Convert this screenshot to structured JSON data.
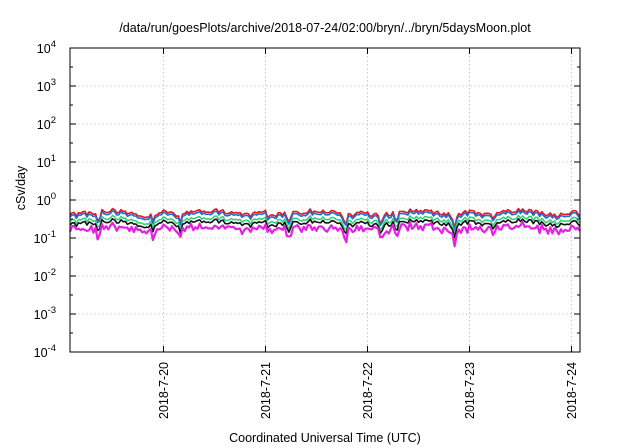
{
  "chart_data": {
    "type": "line",
    "title": "/data/run/goesPlots/archive/2018-07-24/02:00/bryn/../bryn/5daysMoon.plot",
    "xlabel": "Coordinated Universal Time (UTC)",
    "ylabel": "cSv/day",
    "yscale": "log",
    "ylim": [
      0.0001,
      10000
    ],
    "xlim_days": [
      "2018-07-19T02:00",
      "2018-07-24T02:00"
    ],
    "grid": true,
    "legend": "none",
    "x_ticks": [
      "2018-7-20",
      "2018-7-21",
      "2018-7-22",
      "2018-7-23",
      "2018-7-24"
    ],
    "y_ticks": [
      {
        "base": "10",
        "exp": "-4"
      },
      {
        "base": "10",
        "exp": "-3"
      },
      {
        "base": "10",
        "exp": "-2"
      },
      {
        "base": "10",
        "exp": "-1"
      },
      {
        "base": "10",
        "exp": "0"
      },
      {
        "base": "10",
        "exp": "1"
      },
      {
        "base": "10",
        "exp": "2"
      },
      {
        "base": "10",
        "exp": "3"
      },
      {
        "base": "10",
        "exp": "4"
      }
    ],
    "series": [
      {
        "color": "#e8141e",
        "base": 0.5
      },
      {
        "color": "#1f6ed4",
        "base": 0.44
      },
      {
        "color": "#35d27a",
        "base": 0.33
      },
      {
        "color": "#111111",
        "base": 0.27
      },
      {
        "color": "#e51fe3",
        "base": 0.21
      }
    ],
    "profile_points": [
      {
        "t": 0.0,
        "f": 1.0
      },
      {
        "t": 0.12,
        "f": 0.8
      },
      {
        "t": 0.5,
        "f": 1.05
      },
      {
        "t": 0.85,
        "f": 0.75
      },
      {
        "t": 1.0,
        "f": 1.0
      }
    ],
    "dips": [
      {
        "day": 0.28,
        "factor": 0.45
      },
      {
        "day": 0.82,
        "factor": 0.6
      },
      {
        "day": 1.08,
        "factor": 0.55
      },
      {
        "day": 1.95,
        "factor": 0.62
      },
      {
        "day": 2.15,
        "factor": 0.5
      },
      {
        "day": 2.7,
        "factor": 0.55
      },
      {
        "day": 2.95,
        "factor": 0.6
      },
      {
        "day": 3.05,
        "factor": 0.45
      },
      {
        "day": 3.2,
        "factor": 0.5
      },
      {
        "day": 3.77,
        "factor": 0.45
      },
      {
        "day": 4.15,
        "factor": 0.6
      },
      {
        "day": 4.88,
        "factor": 0.75
      }
    ]
  }
}
